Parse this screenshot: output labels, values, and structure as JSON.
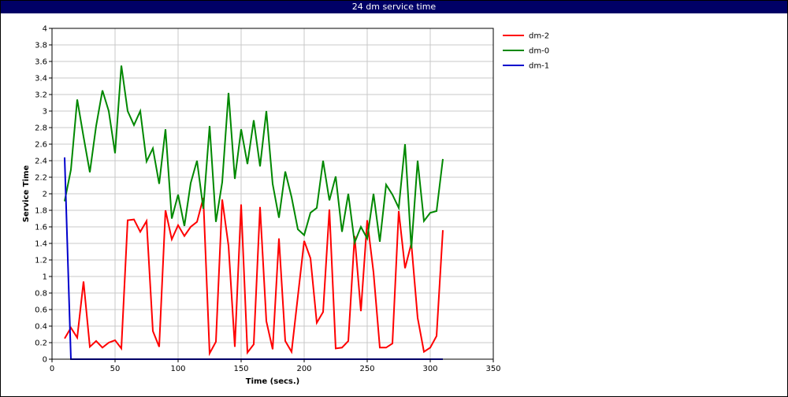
{
  "window": {
    "title": "24 dm service time"
  },
  "chart_data": {
    "type": "line",
    "title": "24 dm service time",
    "xlabel": "Time (secs.)",
    "ylabel": "Service Time",
    "xlim": [
      0,
      350
    ],
    "ylim": [
      0,
      4
    ],
    "xticks": [
      0,
      50,
      100,
      150,
      200,
      250,
      300,
      350
    ],
    "yticks": [
      0,
      0.2,
      0.4,
      0.6,
      0.8,
      1,
      1.2,
      1.4,
      1.6,
      1.8,
      2,
      2.2,
      2.4,
      2.6,
      2.8,
      3,
      3.2,
      3.4,
      3.6,
      3.8,
      4
    ],
    "grid": true,
    "legend_position": "right",
    "series": [
      {
        "name": "dm-2",
        "color": "#ff0000",
        "points": [
          [
            10,
            0.25
          ],
          [
            15,
            0.38
          ],
          [
            20,
            0.26
          ],
          [
            25,
            0.94
          ],
          [
            30,
            0.15
          ],
          [
            35,
            0.22
          ],
          [
            40,
            0.14
          ],
          [
            45,
            0.2
          ],
          [
            50,
            0.23
          ],
          [
            55,
            0.13
          ],
          [
            60,
            1.68
          ],
          [
            65,
            1.69
          ],
          [
            70,
            1.54
          ],
          [
            75,
            1.67
          ],
          [
            80,
            0.34
          ],
          [
            85,
            0.15
          ],
          [
            90,
            1.8
          ],
          [
            95,
            1.45
          ],
          [
            100,
            1.62
          ],
          [
            105,
            1.49
          ],
          [
            110,
            1.6
          ],
          [
            115,
            1.66
          ],
          [
            120,
            1.95
          ],
          [
            125,
            0.07
          ],
          [
            130,
            0.21
          ],
          [
            135,
            1.93
          ],
          [
            140,
            1.37
          ],
          [
            145,
            0.15
          ],
          [
            150,
            1.87
          ],
          [
            155,
            0.08
          ],
          [
            160,
            0.18
          ],
          [
            165,
            1.84
          ],
          [
            170,
            0.46
          ],
          [
            175,
            0.12
          ],
          [
            180,
            1.46
          ],
          [
            185,
            0.22
          ],
          [
            190,
            0.09
          ],
          [
            200,
            1.43
          ],
          [
            205,
            1.22
          ],
          [
            210,
            0.44
          ],
          [
            215,
            0.57
          ],
          [
            220,
            1.81
          ],
          [
            225,
            0.13
          ],
          [
            230,
            0.14
          ],
          [
            235,
            0.22
          ],
          [
            240,
            1.49
          ],
          [
            245,
            0.58
          ],
          [
            250,
            1.68
          ],
          [
            255,
            1.05
          ],
          [
            260,
            0.14
          ],
          [
            265,
            0.14
          ],
          [
            270,
            0.19
          ],
          [
            275,
            1.79
          ],
          [
            280,
            1.1
          ],
          [
            285,
            1.4
          ],
          [
            290,
            0.5
          ],
          [
            295,
            0.09
          ],
          [
            300,
            0.14
          ],
          [
            305,
            0.28
          ],
          [
            310,
            1.56
          ]
        ]
      },
      {
        "name": "dm-0",
        "color": "#008800",
        "points": [
          [
            10,
            1.91
          ],
          [
            15,
            2.29
          ],
          [
            20,
            3.14
          ],
          [
            25,
            2.69
          ],
          [
            30,
            2.26
          ],
          [
            35,
            2.82
          ],
          [
            40,
            3.25
          ],
          [
            45,
            3.0
          ],
          [
            50,
            2.49
          ],
          [
            55,
            3.55
          ],
          [
            60,
            3.0
          ],
          [
            65,
            2.83
          ],
          [
            70,
            3.0
          ],
          [
            75,
            2.39
          ],
          [
            80,
            2.55
          ],
          [
            85,
            2.12
          ],
          [
            90,
            2.78
          ],
          [
            95,
            1.7
          ],
          [
            100,
            1.99
          ],
          [
            105,
            1.61
          ],
          [
            110,
            2.13
          ],
          [
            115,
            2.4
          ],
          [
            120,
            1.82
          ],
          [
            125,
            2.82
          ],
          [
            130,
            1.66
          ],
          [
            135,
            2.14
          ],
          [
            140,
            3.22
          ],
          [
            145,
            2.18
          ],
          [
            150,
            2.78
          ],
          [
            155,
            2.36
          ],
          [
            160,
            2.89
          ],
          [
            165,
            2.33
          ],
          [
            170,
            3.0
          ],
          [
            175,
            2.12
          ],
          [
            180,
            1.71
          ],
          [
            185,
            2.27
          ],
          [
            190,
            1.96
          ],
          [
            195,
            1.57
          ],
          [
            200,
            1.5
          ],
          [
            205,
            1.77
          ],
          [
            210,
            1.83
          ],
          [
            215,
            2.4
          ],
          [
            220,
            1.92
          ],
          [
            225,
            2.21
          ],
          [
            230,
            1.54
          ],
          [
            235,
            2.0
          ],
          [
            240,
            1.41
          ],
          [
            245,
            1.6
          ],
          [
            250,
            1.46
          ],
          [
            255,
            2.0
          ],
          [
            260,
            1.42
          ],
          [
            265,
            2.11
          ],
          [
            270,
            1.99
          ],
          [
            275,
            1.83
          ],
          [
            280,
            2.6
          ],
          [
            285,
            1.34
          ],
          [
            290,
            2.4
          ],
          [
            295,
            1.67
          ],
          [
            300,
            1.77
          ],
          [
            305,
            1.79
          ],
          [
            310,
            2.42
          ]
        ]
      },
      {
        "name": "dm-1",
        "color": "#0000cc",
        "points": [
          [
            10,
            2.44
          ],
          [
            15,
            0.0
          ],
          [
            20,
            0.0
          ],
          [
            310,
            0.0
          ]
        ]
      }
    ]
  }
}
